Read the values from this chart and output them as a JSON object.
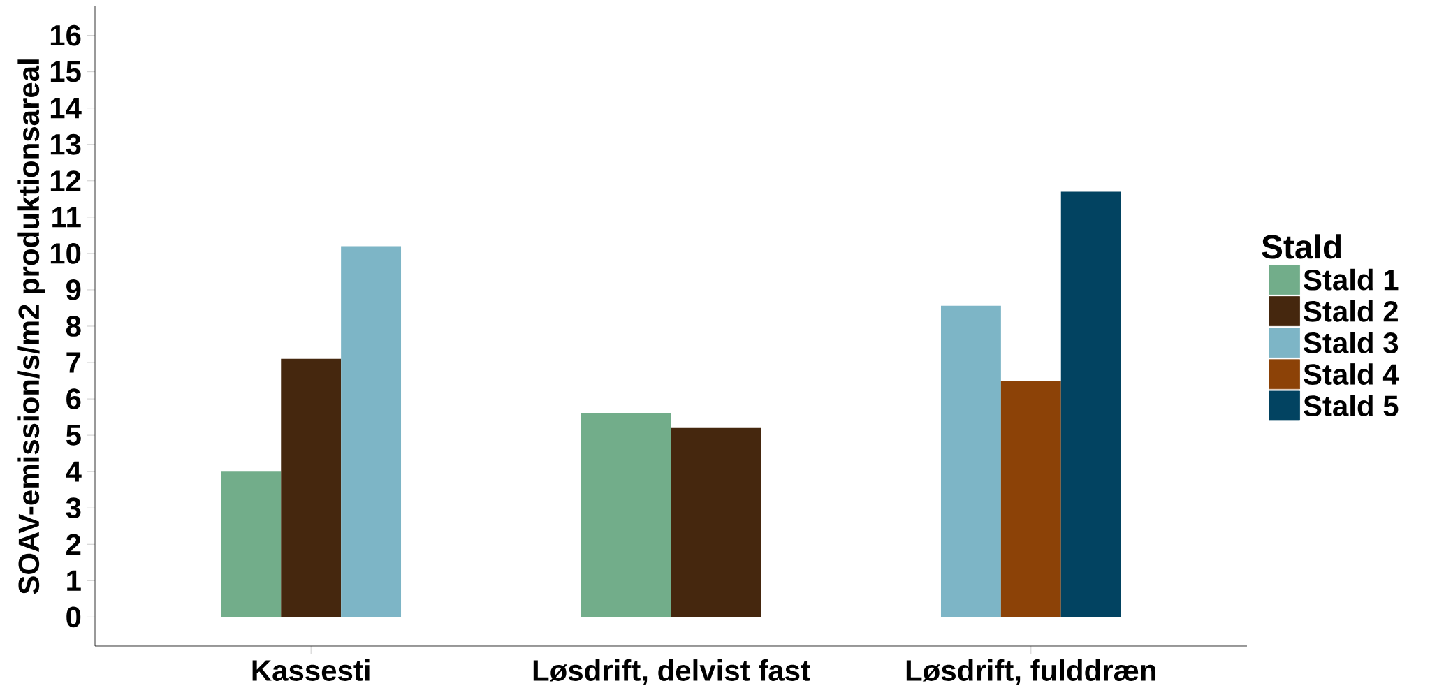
{
  "chart_data": {
    "type": "bar",
    "ylabel": "SOAV-emission/s/m2 produktionsareal",
    "legend_title": "Stald",
    "categories": [
      "Kassesti",
      "Løsdrift, delvist fast",
      "Løsdrift, fulddræn"
    ],
    "series": [
      {
        "name": "Stald 1",
        "color": "#72ad8a",
        "values": [
          4.0,
          5.6,
          null
        ]
      },
      {
        "name": "Stald 2",
        "color": "#45270e",
        "values": [
          7.1,
          5.2,
          null
        ]
      },
      {
        "name": "Stald 3",
        "color": "#7db5c6",
        "values": [
          10.2,
          null,
          8.56
        ]
      },
      {
        "name": "Stald 4",
        "color": "#8c4207",
        "values": [
          null,
          null,
          6.5
        ]
      },
      {
        "name": "Stald 5",
        "color": "#024361",
        "values": [
          null,
          null,
          11.7
        ]
      }
    ],
    "ylim": [
      -0.8,
      16.8
    ],
    "yticks": [
      0,
      1,
      2,
      3,
      4,
      5,
      6,
      7,
      8,
      9,
      10,
      11,
      12,
      13,
      14,
      15,
      16
    ],
    "grid": false,
    "legend": "right"
  }
}
